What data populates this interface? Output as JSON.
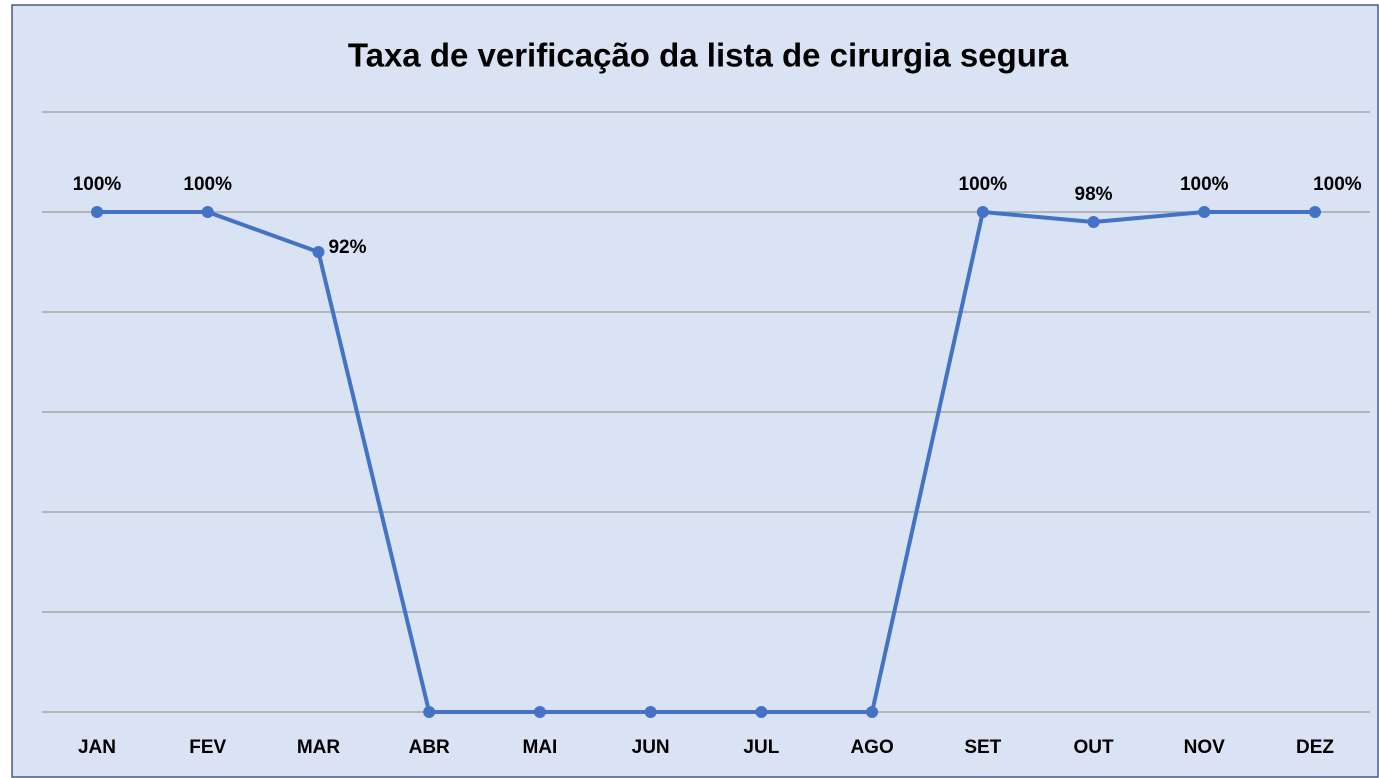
{
  "chart_data": {
    "type": "line",
    "title": "Taxa de verificação da lista de cirurgia segura",
    "categories": [
      "JAN",
      "FEV",
      "MAR",
      "ABR",
      "MAI",
      "JUN",
      "JUL",
      "AGO",
      "SET",
      "OUT",
      "NOV",
      "DEZ"
    ],
    "series": [
      {
        "name": null,
        "color": "#4472c4",
        "values": [
          100,
          100,
          92,
          0,
          0,
          0,
          0,
          0,
          100,
          98,
          100,
          100
        ],
        "value_labels": [
          "100%",
          "100%",
          "92%",
          null,
          null,
          null,
          null,
          null,
          "100%",
          "98%",
          "100%",
          "100%"
        ]
      }
    ],
    "ylim": [
      0,
      120
    ],
    "yticks": [
      0,
      20,
      40,
      60,
      80,
      100,
      120
    ],
    "grid": true
  }
}
